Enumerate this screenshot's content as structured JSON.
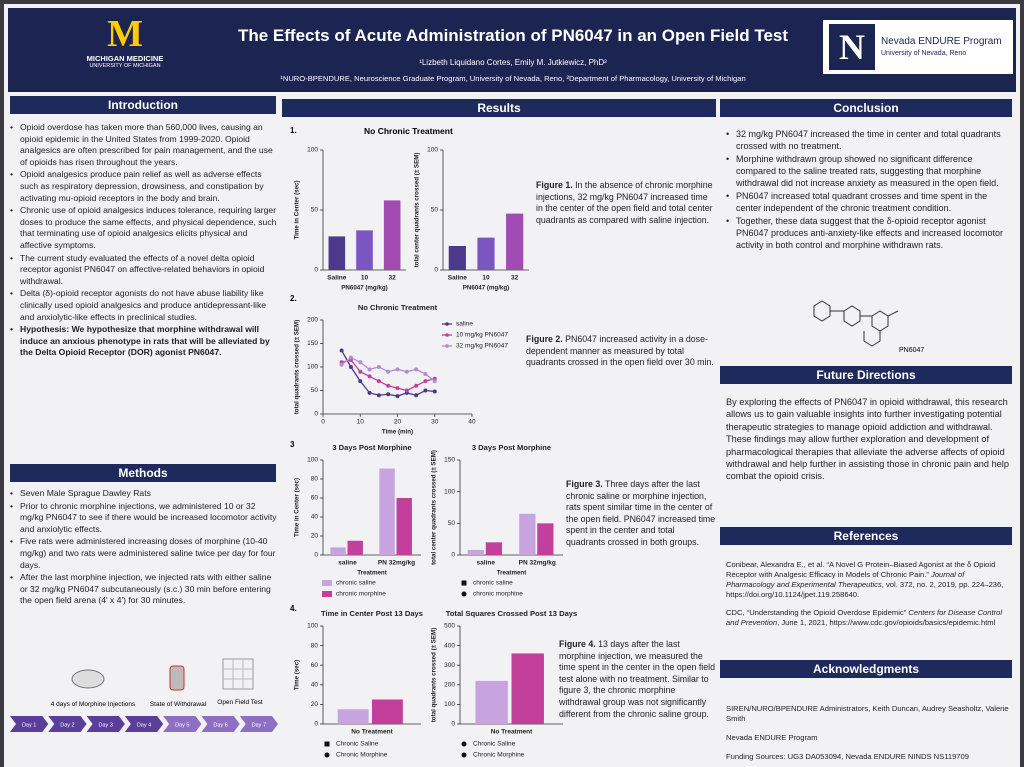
{
  "header": {
    "title": "The Effects of Acute Administration of PN6047 in an Open Field Test",
    "authors": "¹Lizbeth Liquidano Cortes, Emily M. Jutkiewicz, PhD²",
    "affiliations": "¹NURO-BPENDURE, Neuroscience Graduate Program, University of Nevada, Reno, ²Department of Pharmacology, University of Michigan",
    "left_logo": {
      "mark": "M",
      "name": "MICHIGAN MEDICINE",
      "sub": "UNIVERSITY OF MICHIGAN"
    },
    "right_logo": {
      "mark": "N",
      "name": "Nevada ENDURE Program",
      "sub": "University of Nevada, Reno"
    }
  },
  "introduction": {
    "title": "Introduction",
    "bullets": [
      "Opioid overdose has taken more than 560,000 lives, causing an opioid epidemic in the United States from 1999-2020. Opioid analgesics are often prescribed for pain management, and the use of opioids has risen throughout the years.",
      "Opioid analgesics produce pain relief as well as adverse effects such as respiratory depression, drowsiness, and constipation by activating mu-opioid receptors in the body and brain.",
      "Chronic use of opioid analgesics induces tolerance, requiring larger doses to produce the same effects, and physical dependence, such that terminating use of opioid analgesics elicits physical and affective symptoms.",
      "The current study evaluated the effects of a novel delta opioid receptor agonist PN6047 on affective-related behaviors in opioid withdrawal.",
      "Delta (δ)-opioid receptor agonists do not have abuse liability like clinically used opioid analgesics and produce antidepressant-like and anxiolytic-like effects in preclinical studies."
    ],
    "hypothesis": "Hypothesis: We hypothesize that morphine withdrawal will induce an anxious phenotype in rats that will be alleviated by the Delta Opioid Receptor (DOR) agonist PN6047."
  },
  "methods": {
    "title": "Methods",
    "bullets": [
      "Seven Male Sprague Dawley Rats",
      "Prior to chronic morphine injections, we administered 10 or 32 mg/kg PN6047 to see if there would be increased locomotor activity and anxiolytic effects.",
      "Five rats were administered increasing doses of morphine (10-40 mg/kg) and two rats were administered saline twice per day for four days.",
      "After the last morphine injection, we injected rats with either saline or 32 mg/kg PN6047 subcutaneously (s.c.) 30 min before entering the open field arena (4' x 4') for 30 minutes."
    ],
    "diagram": {
      "injections": "4 days of Morphine Injections",
      "withdrawal": "State of Withdrawal",
      "test": "Open Field Test",
      "timeline": [
        "Day 1",
        "Day 2",
        "Day 3",
        "Day 4",
        "Day 5",
        "Day 6",
        "Day 7"
      ]
    }
  },
  "results": {
    "title": "Results",
    "figures": [
      {
        "number": "1.",
        "title": "No Chronic Treatment",
        "charts": [
          {
            "type": "bar",
            "ylabel": "Time in Center (sec)",
            "xlabel": "PN6047 (mg/kg)",
            "categories": [
              "Saline",
              "10",
              "32"
            ],
            "values": [
              28,
              33,
              58
            ],
            "colors": [
              "#4b3a8c",
              "#7b55c0",
              "#a24bb3"
            ],
            "ylim": [
              0,
              100
            ],
            "yticks": [
              0,
              50,
              100
            ]
          },
          {
            "type": "bar",
            "ylabel": "total center quadrants crossed (± SEM)",
            "xlabel": "PN6047 (mg/kg)",
            "categories": [
              "Saline",
              "10",
              "32"
            ],
            "values": [
              20,
              27,
              47
            ],
            "colors": [
              "#4b3a8c",
              "#7b55c0",
              "#a24bb3"
            ],
            "ylim": [
              0,
              100
            ],
            "yticks": [
              0,
              50,
              100
            ]
          }
        ],
        "caption": {
          "label": "Figure 1.",
          "text": "In the absence of chronic morphine injections, 32 mg/kg PN6047 increased time in the center of the open field and total center quadrants as compared with saline injection."
        }
      },
      {
        "number": "2.",
        "charts": [
          {
            "type": "line",
            "title": "No Chronic Treatment",
            "ylabel": "total quadrants crossed (± SEM)",
            "xlabel": "Time (min)",
            "x": [
              5,
              7.5,
              10,
              12.5,
              15,
              17.5,
              20,
              22.5,
              25,
              27.5,
              30
            ],
            "series": [
              {
                "name": "saline",
                "color": "#4b3a8c",
                "values": [
                  135,
                  100,
                  70,
                  45,
                  40,
                  42,
                  38,
                  45,
                  40,
                  50,
                  48
                ]
              },
              {
                "name": "10 mg/kg PN6047",
                "color": "#c2409b",
                "values": [
                  110,
                  115,
                  90,
                  80,
                  70,
                  60,
                  55,
                  50,
                  60,
                  70,
                  75
                ]
              },
              {
                "name": "32 mg/kg PN6047",
                "color": "#b48ad8",
                "values": [
                  105,
                  120,
                  110,
                  95,
                  100,
                  90,
                  95,
                  90,
                  95,
                  85,
                  70
                ]
              }
            ],
            "xlim": [
              0,
              40
            ],
            "xticks": [
              0,
              10,
              20,
              30,
              40
            ],
            "ylim": [
              0,
              200
            ],
            "yticks": [
              0,
              50,
              100,
              150,
              200
            ]
          }
        ],
        "caption": {
          "label": "Figure 2.",
          "text": "PN6047 increased activity in a dose-dependent manner as measured by total quadrants crossed in the open field over 30 min."
        }
      },
      {
        "number": "3",
        "charts": [
          {
            "type": "bar",
            "title": "3 Days Post Morphine",
            "ylabel": "Time in Center (sec)",
            "xlabel": "Treatment",
            "categories": [
              "saline",
              "PN 32mg/kg"
            ],
            "series": [
              {
                "name": "chronic saline",
                "color": "#c7a3e0",
                "values": [
                  8,
                  91
                ]
              },
              {
                "name": "chronic morphine",
                "color": "#c2409b",
                "values": [
                  15,
                  60
                ]
              }
            ],
            "legend_style": "swatch",
            "ylim": [
              0,
              100
            ],
            "yticks": [
              0,
              20,
              40,
              60,
              80,
              100
            ]
          },
          {
            "type": "bar",
            "title": "3 Days Post Morphine",
            "ylabel": "total center quadrants crossed (± SEM)",
            "xlabel": "Treatment",
            "categories": [
              "saline",
              "PN 32mg/kg"
            ],
            "series": [
              {
                "name": "chronic saline",
                "color": "#c7a3e0",
                "marker": "square",
                "values": [
                  8,
                  65
                ]
              },
              {
                "name": "chronic morphine",
                "color": "#c2409b",
                "marker": "circle",
                "values": [
                  20,
                  50
                ]
              }
            ],
            "legend_style": "shapes",
            "ylim": [
              0,
              150
            ],
            "yticks": [
              0,
              50,
              100,
              150
            ]
          }
        ],
        "caption": {
          "label": "Figure 3.",
          "text": "Three days after the last chronic saline or morphine injection, rats spent similar time in the center of the open field. PN6047 increased time spent in the center and total quadrants crossed in both groups."
        }
      },
      {
        "number": "4.",
        "charts": [
          {
            "type": "bar",
            "title": "Time in Center Post 13 Days",
            "ylabel": "Time (sec)",
            "categories": [
              "No Treatment"
            ],
            "series": [
              {
                "name": "Chronic Saline",
                "color": "#c7a3e0",
                "marker": "square",
                "values": [
                  15
                ]
              },
              {
                "name": "Chronic Morphine",
                "color": "#c2409b",
                "marker": "circle",
                "values": [
                  25
                ]
              }
            ],
            "legend_style": "shapes",
            "ylim": [
              0,
              100
            ],
            "yticks": [
              0,
              20,
              40,
              60,
              80,
              100
            ]
          },
          {
            "type": "bar",
            "title": "Total Squares Crossed Post 13 Days",
            "ylabel": "total quadrants crossed (± SEM)",
            "categories": [
              "No Treatment"
            ],
            "series": [
              {
                "name": "Chronic Saline",
                "color": "#c7a3e0",
                "marker": "circle",
                "values": [
                  220
                ]
              },
              {
                "name": "Chronic Morphine",
                "color": "#c2409b",
                "marker": "circle",
                "values": [
                  360
                ]
              }
            ],
            "legend_style": "shapes",
            "ylim": [
              0,
              500
            ],
            "yticks": [
              0,
              100,
              200,
              300,
              400,
              500
            ]
          }
        ],
        "caption": {
          "label": "Figure 4.",
          "text": "13 days after the last morphine injection, we measured the time spent in the center in the open field test alone with no treatment. Similar to figure 3, the chronic morphine withdrawal group was not significantly different from the chronic saline group."
        }
      }
    ]
  },
  "conclusion": {
    "title": "Conclusion",
    "bullets": [
      "32 mg/kg PN6047 increased the time in center and total quadrants crossed with no treatment.",
      "Morphine withdrawn group showed no significant difference compared to the saline treated rats, suggesting that morphine withdrawal did not increase anxiety as measured in the open field.",
      "PN6047 increased total quadrant crosses and time spent in the center independent of the chronic treatment condition.",
      "Together, these data suggest that the δ-opioid receptor agonist PN6047 produces anti-anxiety-like effects and increased locomotor activity in both control and morphine withdrawn rats."
    ],
    "structure_label": "PN6047"
  },
  "future_directions": {
    "title": "Future Directions",
    "text": "By exploring the effects of PN6047 in opioid withdrawal, this research allows us to gain valuable insights into further investigating potential therapeutic strategies to manage opioid addiction and withdrawal. These findings may allow further exploration and development of pharmacological therapies that alleviate the adverse affects of opioid withdrawal and help further in assisting those in chronic pain and help combat the opioid crisis."
  },
  "references": {
    "title": "References",
    "items": [
      {
        "before": "Conibear, Alexandra E., et al. “A Novel G Protein–Biased Agonist at the δ Opioid Receptor with Analgesic Efficacy in Models of Chronic Pain.”",
        "journal": "Journal of Pharmacology and Experimental Therapeutics",
        "after": ", vol. 372, no. 2, 2019, pp. 224–236, https://doi.org/10.1124/jpet.119.258640."
      },
      {
        "before": "CDC, “Understanding the Opioid Overdose Epidemic”",
        "journal": "Centers for Disease Control and Prevention",
        "after": ", June 1, 2021, https://www.cdc.gov/opioids/basics/epidemic.html"
      }
    ]
  },
  "acknowledgments": {
    "title": "Acknowledgments",
    "items": [
      "SIREN/NURO/BPENDURE Administrators, Keith Duncan, Audrey Seasholtz, Valerie Smith",
      "Nevada ENDURE Program",
      "Funding Sources: UG3 DA053094, Nevada ENDURE NINDS NS119709"
    ]
  }
}
